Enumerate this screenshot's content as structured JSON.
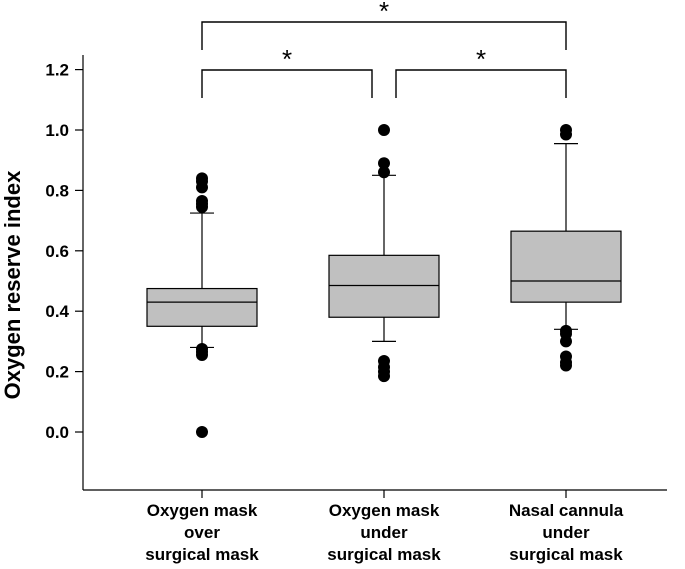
{
  "chart_data": {
    "type": "box",
    "ylabel": "Oxygen reserve index",
    "xlabel": "",
    "ylim": [
      -0.2,
      1.2
    ],
    "yticks": [
      "0.0",
      "0.2",
      "0.4",
      "0.6",
      "0.8",
      "1.0",
      "1.2"
    ],
    "ytick_values": [
      0.0,
      0.2,
      0.4,
      0.6,
      0.8,
      1.0,
      1.2
    ],
    "grid": false,
    "categories": [
      [
        "Oxygen mask",
        "over",
        "surgical mask"
      ],
      [
        "Oxygen mask",
        "under",
        "surgical mask"
      ],
      [
        "Nasal cannula",
        "under",
        "surgical mask"
      ]
    ],
    "boxes": [
      {
        "whisker_low": 0.28,
        "q1": 0.35,
        "median": 0.43,
        "q3": 0.475,
        "whisker_high": 0.725,
        "outliers": [
          0.84,
          0.83,
          0.81,
          0.765,
          0.755,
          0.745,
          0.275,
          0.265,
          0.255,
          0.0
        ]
      },
      {
        "whisker_low": 0.3,
        "q1": 0.38,
        "median": 0.485,
        "q3": 0.585,
        "whisker_high": 0.85,
        "outliers": [
          1.0,
          0.89,
          0.86,
          0.235,
          0.215,
          0.2,
          0.185
        ]
      },
      {
        "whisker_low": 0.34,
        "q1": 0.43,
        "median": 0.5,
        "q3": 0.665,
        "whisker_high": 0.955,
        "outliers": [
          1.0,
          0.985,
          0.335,
          0.325,
          0.3,
          0.25,
          0.23,
          0.22
        ]
      }
    ],
    "box_color": "#c0c0c0",
    "significance": [
      {
        "from": 0,
        "to": 2,
        "label": "*"
      },
      {
        "from": 0,
        "to": 1,
        "label": "*"
      },
      {
        "from": 1,
        "to": 2,
        "label": "*"
      }
    ]
  }
}
